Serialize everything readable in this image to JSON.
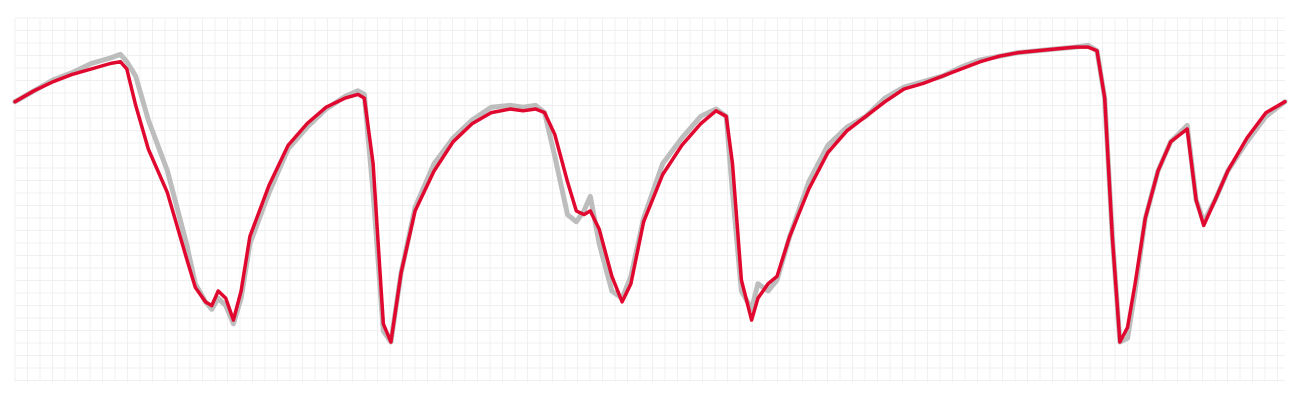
{
  "chart_data": {
    "type": "line",
    "title": "",
    "xlabel": "",
    "ylabel": "",
    "x_range": [
      0,
      100
    ],
    "ylim": [
      0,
      100
    ],
    "grid": true,
    "legend": "none",
    "series": [
      {
        "role": "reference",
        "color": "#bdbdbd",
        "points": [
          [
            0,
            77
          ],
          [
            1.5,
            80
          ],
          [
            3,
            83
          ],
          [
            4.5,
            85
          ],
          [
            6,
            87.5
          ],
          [
            7.5,
            89
          ],
          [
            8.3,
            90
          ],
          [
            8.8,
            88
          ],
          [
            9.5,
            84
          ],
          [
            10.5,
            72
          ],
          [
            12,
            58
          ],
          [
            13.5,
            38
          ],
          [
            14.2,
            27
          ],
          [
            15,
            22
          ],
          [
            15.5,
            20
          ],
          [
            16,
            23
          ],
          [
            16.6,
            21
          ],
          [
            17.2,
            16
          ],
          [
            17.8,
            23
          ],
          [
            18.5,
            38
          ],
          [
            20,
            52
          ],
          [
            21.5,
            64
          ],
          [
            23,
            70
          ],
          [
            24.5,
            75
          ],
          [
            26,
            78.5
          ],
          [
            27,
            80
          ],
          [
            27.5,
            79
          ],
          [
            28.2,
            52
          ],
          [
            29,
            14
          ],
          [
            29.6,
            11
          ],
          [
            30.4,
            30
          ],
          [
            31.5,
            48
          ],
          [
            33,
            60
          ],
          [
            34.5,
            67
          ],
          [
            36,
            72
          ],
          [
            37.5,
            75.5
          ],
          [
            39,
            76
          ],
          [
            40,
            75.5
          ],
          [
            41,
            76
          ],
          [
            41.7,
            74
          ],
          [
            42.5,
            62
          ],
          [
            43.5,
            46
          ],
          [
            44.2,
            44
          ],
          [
            44.8,
            47
          ],
          [
            45.3,
            51
          ],
          [
            46,
            38
          ],
          [
            47,
            25
          ],
          [
            47.8,
            23
          ],
          [
            48.5,
            29
          ],
          [
            49.5,
            45
          ],
          [
            51,
            60
          ],
          [
            52.5,
            67
          ],
          [
            54,
            73
          ],
          [
            55.2,
            75
          ],
          [
            56,
            73
          ],
          [
            56.5,
            52
          ],
          [
            57.2,
            25
          ],
          [
            58,
            20
          ],
          [
            58.5,
            27
          ],
          [
            59.3,
            25
          ],
          [
            60,
            28
          ],
          [
            61,
            40
          ],
          [
            62.5,
            55
          ],
          [
            64,
            65
          ],
          [
            65.5,
            70
          ],
          [
            67,
            73
          ],
          [
            68.5,
            78
          ],
          [
            70,
            81
          ],
          [
            71.5,
            82.5
          ],
          [
            73,
            84
          ],
          [
            74.5,
            86.5
          ],
          [
            76,
            88.5
          ],
          [
            77.5,
            89.5
          ],
          [
            79,
            90.5
          ],
          [
            80.5,
            91
          ],
          [
            82,
            91.5
          ],
          [
            83.5,
            92
          ],
          [
            84.5,
            92.5
          ],
          [
            85.2,
            91
          ],
          [
            85.8,
            78
          ],
          [
            86.4,
            40
          ],
          [
            87,
            11
          ],
          [
            87.6,
            12
          ],
          [
            88.2,
            25
          ],
          [
            89,
            45
          ],
          [
            90,
            58
          ],
          [
            91,
            66
          ],
          [
            92.3,
            70.5
          ],
          [
            93,
            50
          ],
          [
            93.6,
            44
          ],
          [
            94.5,
            50
          ],
          [
            95.5,
            58
          ],
          [
            97,
            66
          ],
          [
            98.5,
            73
          ],
          [
            100,
            77
          ]
        ]
      },
      {
        "role": "prediction",
        "color": "#e0082f",
        "points": [
          [
            0,
            77
          ],
          [
            1.5,
            80
          ],
          [
            3,
            82.5
          ],
          [
            4.5,
            84.5
          ],
          [
            6,
            86
          ],
          [
            7.5,
            87.5
          ],
          [
            8.3,
            88
          ],
          [
            8.8,
            86
          ],
          [
            9.5,
            76
          ],
          [
            10.5,
            64
          ],
          [
            12,
            52
          ],
          [
            13.5,
            34
          ],
          [
            14.2,
            26
          ],
          [
            15,
            22
          ],
          [
            15.5,
            21
          ],
          [
            16,
            25
          ],
          [
            16.6,
            23
          ],
          [
            17.2,
            17
          ],
          [
            17.8,
            25
          ],
          [
            18.5,
            40
          ],
          [
            20,
            54
          ],
          [
            21.5,
            65
          ],
          [
            23,
            71
          ],
          [
            24.5,
            75.5
          ],
          [
            26,
            78
          ],
          [
            27,
            79
          ],
          [
            27.5,
            78
          ],
          [
            28.2,
            60
          ],
          [
            29,
            16
          ],
          [
            29.6,
            11
          ],
          [
            30.4,
            30
          ],
          [
            31.5,
            47
          ],
          [
            33,
            58
          ],
          [
            34.5,
            66
          ],
          [
            36,
            71
          ],
          [
            37.5,
            74
          ],
          [
            39,
            75
          ],
          [
            40,
            74.5
          ],
          [
            41,
            75
          ],
          [
            41.7,
            74
          ],
          [
            42.5,
            68
          ],
          [
            43.5,
            55
          ],
          [
            44.2,
            47
          ],
          [
            44.8,
            46
          ],
          [
            45.3,
            47
          ],
          [
            46,
            42
          ],
          [
            47,
            29
          ],
          [
            47.8,
            22
          ],
          [
            48.5,
            27
          ],
          [
            49.5,
            44
          ],
          [
            51,
            57
          ],
          [
            52.5,
            65
          ],
          [
            54,
            71
          ],
          [
            55.2,
            74.5
          ],
          [
            56,
            73
          ],
          [
            56.5,
            60
          ],
          [
            57.2,
            28
          ],
          [
            58,
            17
          ],
          [
            58.5,
            23
          ],
          [
            59.3,
            27
          ],
          [
            60,
            29
          ],
          [
            61,
            40
          ],
          [
            62.5,
            53
          ],
          [
            64,
            63
          ],
          [
            65.5,
            69
          ],
          [
            67,
            73
          ],
          [
            68.5,
            77
          ],
          [
            70,
            80.5
          ],
          [
            71.5,
            82
          ],
          [
            73,
            84
          ],
          [
            74.5,
            86
          ],
          [
            76,
            88
          ],
          [
            77.5,
            89.5
          ],
          [
            79,
            90.5
          ],
          [
            80.5,
            91
          ],
          [
            82,
            91.5
          ],
          [
            83.5,
            92
          ],
          [
            84.5,
            92
          ],
          [
            85.2,
            91
          ],
          [
            85.8,
            78
          ],
          [
            86.4,
            40
          ],
          [
            87,
            11
          ],
          [
            87.6,
            15
          ],
          [
            88.2,
            27
          ],
          [
            89,
            45
          ],
          [
            90,
            58
          ],
          [
            91,
            66
          ],
          [
            92.3,
            69.5
          ],
          [
            93,
            50
          ],
          [
            93.6,
            43
          ],
          [
            94.5,
            50
          ],
          [
            95.5,
            58
          ],
          [
            97,
            67
          ],
          [
            98.5,
            74
          ],
          [
            100,
            77
          ]
        ]
      }
    ]
  }
}
